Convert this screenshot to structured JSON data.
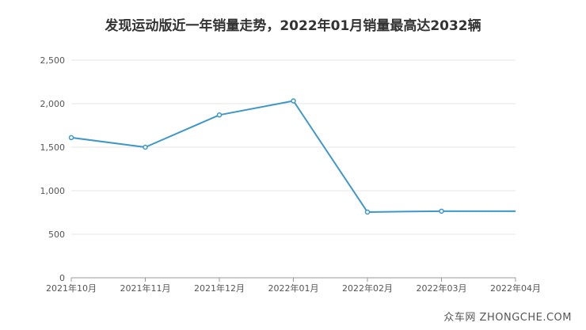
{
  "chart_data": {
    "type": "line",
    "title": "发现运动版近一年销量走势，2022年01月销量最高达2032辆",
    "categories": [
      "2021年10月",
      "2021年11月",
      "2021年12月",
      "2022年01月",
      "2022年02月",
      "2022年03月",
      "2022年04月"
    ],
    "series": [
      {
        "values": [
          1610,
          1500,
          1870,
          2032,
          755,
          765,
          765
        ]
      }
    ],
    "ylim": [
      0,
      2500
    ],
    "yticks": [
      0,
      500,
      1000,
      1500,
      2000,
      2500
    ],
    "ytick_labels": [
      "0",
      "500",
      "1,000",
      "1,500",
      "2,000",
      "2,500"
    ],
    "grid": true,
    "line_color": "#3d98c9",
    "grid_color": "#e6e6e6",
    "axis_color": "#999999"
  },
  "watermark": "众车网 ZHONGCHE.COM"
}
